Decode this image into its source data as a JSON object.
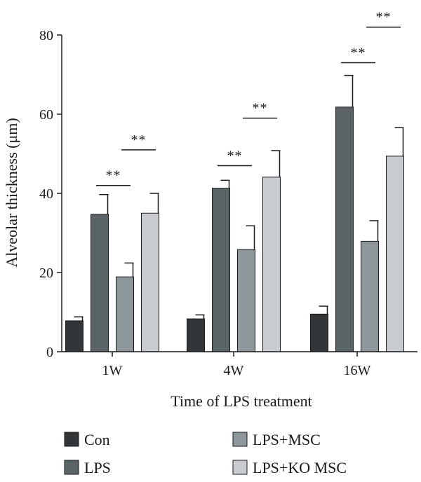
{
  "chart_data": {
    "type": "bar",
    "title": "",
    "xlabel": "Time of LPS treatment",
    "ylabel": "Alveolar thickness (μm)",
    "ylim": [
      0,
      80
    ],
    "yticks": [
      0,
      20,
      40,
      60,
      80
    ],
    "categories": [
      "1W",
      "4W",
      "16W"
    ],
    "grid": false,
    "legend_position": "bottom",
    "series": [
      {
        "name": "Con",
        "color": "#333638",
        "values": [
          7.8,
          8.3,
          9.5
        ],
        "errors": [
          1.0,
          1.0,
          2.0
        ]
      },
      {
        "name": "LPS",
        "color": "#5a6366",
        "values": [
          34.7,
          41.3,
          61.8
        ],
        "errors": [
          5.0,
          2.0,
          8.0
        ]
      },
      {
        "name": "LPS+MSC",
        "color": "#8e979c",
        "values": [
          18.9,
          25.8,
          27.9
        ],
        "errors": [
          3.5,
          6.0,
          5.2
        ]
      },
      {
        "name": "LPS+KO MSC",
        "color": "#c8ccd0",
        "values": [
          35.0,
          44.1,
          49.4
        ],
        "errors": [
          5.0,
          6.7,
          7.2
        ]
      }
    ],
    "significance": [
      {
        "category": "1W",
        "from_series": 1,
        "to_series": 2,
        "label": "**",
        "y": 42
      },
      {
        "category": "1W",
        "from_series": 2,
        "to_series": 3,
        "label": "**",
        "y": 51
      },
      {
        "category": "4W",
        "from_series": 1,
        "to_series": 2,
        "label": "**",
        "y": 47
      },
      {
        "category": "4W",
        "from_series": 2,
        "to_series": 3,
        "label": "**",
        "y": 59
      },
      {
        "category": "16W",
        "from_series": 1,
        "to_series": 2,
        "label": "**",
        "y": 73
      },
      {
        "category": "16W",
        "from_series": 2,
        "to_series": 3,
        "label": "**",
        "y": 82
      }
    ]
  }
}
